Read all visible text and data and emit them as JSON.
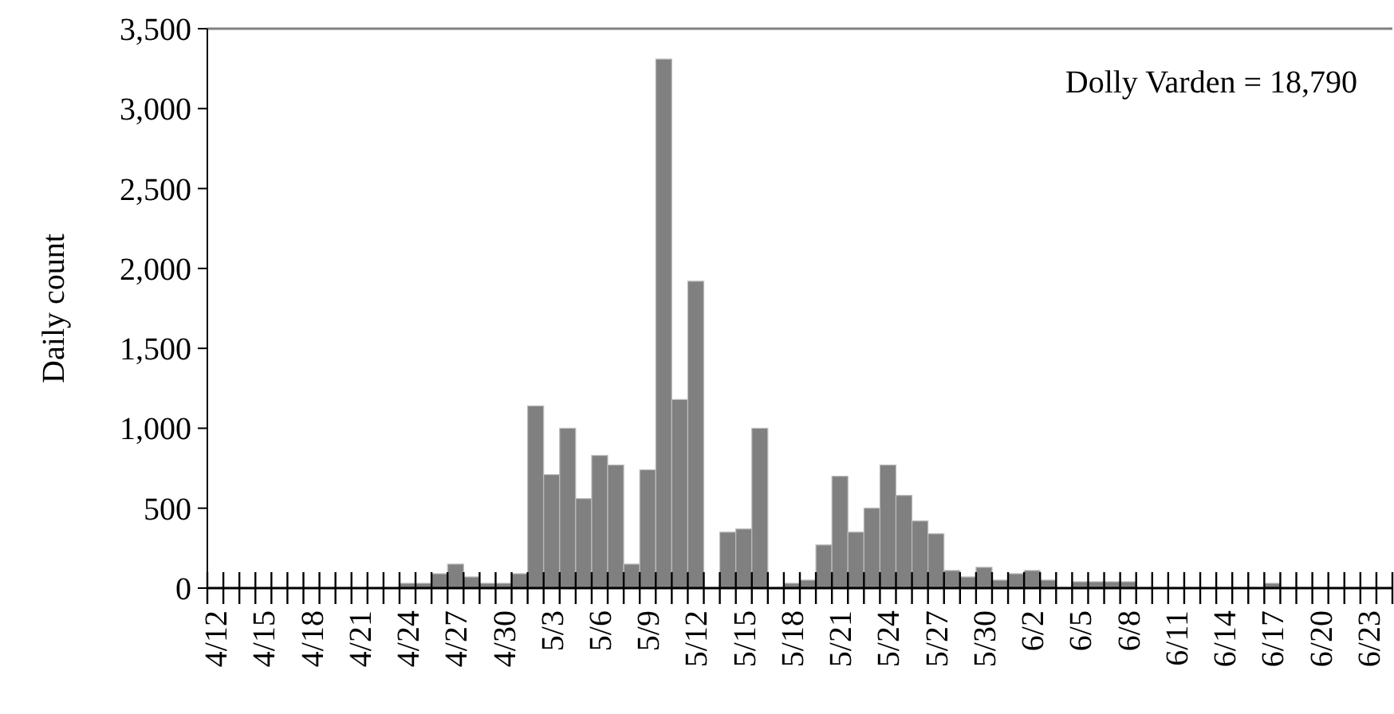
{
  "chart_data": {
    "type": "bar",
    "ylabel": "Daily count",
    "categories": [
      "4/12",
      null,
      null,
      "4/15",
      null,
      null,
      "4/18",
      null,
      null,
      "4/21",
      null,
      null,
      "4/24",
      null,
      null,
      "4/27",
      null,
      null,
      "4/30",
      null,
      null,
      "5/3",
      null,
      null,
      "5/6",
      null,
      null,
      "5/9",
      null,
      null,
      "5/12",
      null,
      null,
      "5/15",
      null,
      null,
      "5/18",
      null,
      null,
      "5/21",
      null,
      null,
      "5/24",
      null,
      null,
      "5/27",
      null,
      null,
      "5/30",
      null,
      null,
      "6/2",
      null,
      null,
      "6/5",
      null,
      null,
      "6/8",
      null,
      null,
      "6/11",
      null,
      null,
      "6/14",
      null,
      null,
      "6/17",
      null,
      null,
      "6/20",
      null,
      null,
      "6/23",
      null
    ],
    "values": [
      0,
      0,
      0,
      0,
      0,
      0,
      0,
      0,
      0,
      0,
      0,
      0,
      30,
      30,
      90,
      150,
      70,
      30,
      30,
      90,
      1140,
      710,
      1000,
      560,
      830,
      770,
      150,
      740,
      3310,
      1180,
      1920,
      0,
      350,
      370,
      1000,
      0,
      30,
      50,
      270,
      700,
      350,
      500,
      770,
      580,
      420,
      340,
      110,
      70,
      130,
      50,
      90,
      110,
      50,
      0,
      40,
      40,
      40,
      40,
      0,
      0,
      0,
      0,
      0,
      0,
      0,
      0,
      30,
      0,
      0,
      0,
      0,
      0,
      0,
      0
    ],
    "color": "#808080",
    "ylim": [
      0,
      3500
    ],
    "yticks": [
      {
        "value": 0,
        "label": "0"
      },
      {
        "value": 500,
        "label": "500"
      },
      {
        "value": 1000,
        "label": "1,000"
      },
      {
        "value": 1500,
        "label": "1,500"
      },
      {
        "value": 2000,
        "label": "2,000"
      },
      {
        "value": 2500,
        "label": "2,500"
      },
      {
        "value": 3000,
        "label": "3,000"
      },
      {
        "value": 3500,
        "label": "3,500"
      }
    ],
    "grid": false,
    "annotations": [
      "Dolly Varden = 18,790"
    ]
  }
}
